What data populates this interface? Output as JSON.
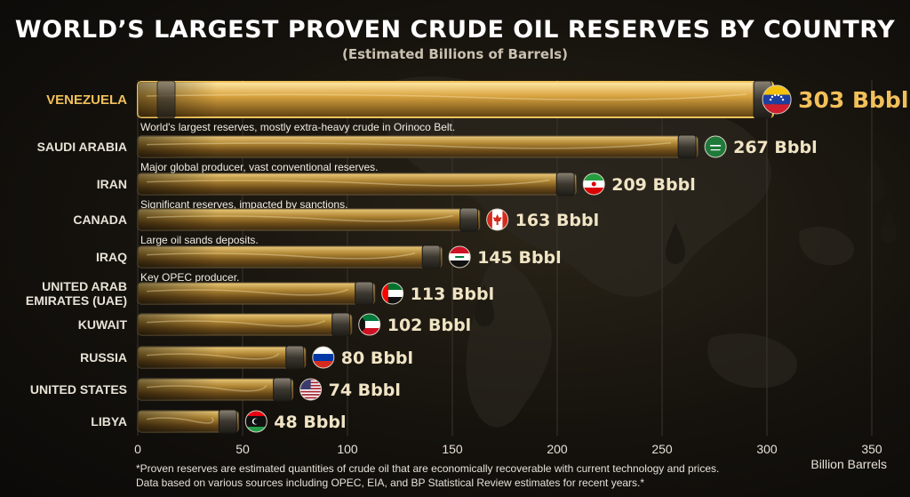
{
  "title": "WORLD’S LARGEST PROVEN CRUDE OIL RESERVES BY COUNTRY",
  "subtitle": "(Estimated Billions of Barrels)",
  "footnote_line1": "*Proven reserves are estimated quantities of crude oil that are economically recoverable with current technology and prices.",
  "footnote_line2": "Data based on various sources including OPEC, EIA, and BP Statistical Review estimates for recent years.*",
  "colors": {
    "accent": "#e8b84a",
    "label": "#e8e2d6",
    "value": "#f0e4c4",
    "highlight_value": "#f2c05a",
    "highlight_label": "#f2c05a"
  },
  "chart_data": {
    "type": "bar",
    "orientation": "horizontal",
    "categories": [
      "VENEZUELA",
      "SAUDI ARABIA",
      "IRAN",
      "CANADA",
      "IRAQ",
      "UNITED ARAB EMIRATES (UAE)",
      "KUWAIT",
      "RUSSIA",
      "UNITED STATES",
      "LIBYA"
    ],
    "values": [
      303,
      267,
      209,
      163,
      145,
      113,
      102,
      80,
      74,
      48
    ],
    "value_labels": [
      "303 Bbbl",
      "267 Bbbl",
      "209 Bbbl",
      "163 Bbbl",
      "145 Bbbl",
      "113 Bbbl",
      "102 Bbbl",
      "80 Bbbl",
      "74 Bbbl",
      "48 Bbbl"
    ],
    "annotations": [
      "World's largest reserves, mostly extra-heavy crude in Orinoco Belt.",
      "Major global producer, vast conventional reserves.",
      "Significant reserves, impacted by sanctions.",
      "Large oil sands deposits.",
      "Key OPEC producer.",
      "",
      "",
      "",
      "",
      ""
    ],
    "flags": [
      "venezuela-flag",
      "saudi-arabia-flag",
      "iran-flag",
      "canada-flag",
      "iraq-flag",
      "uae-flag",
      "kuwait-flag",
      "russia-flag",
      "united-states-flag",
      "libya-flag"
    ],
    "highlight_index": 0,
    "xlabel": "Billion Barrels",
    "xlim": [
      0,
      350
    ],
    "xticks": [
      0,
      50,
      100,
      150,
      200,
      250,
      300,
      350
    ],
    "grid": true,
    "legend": "none"
  }
}
